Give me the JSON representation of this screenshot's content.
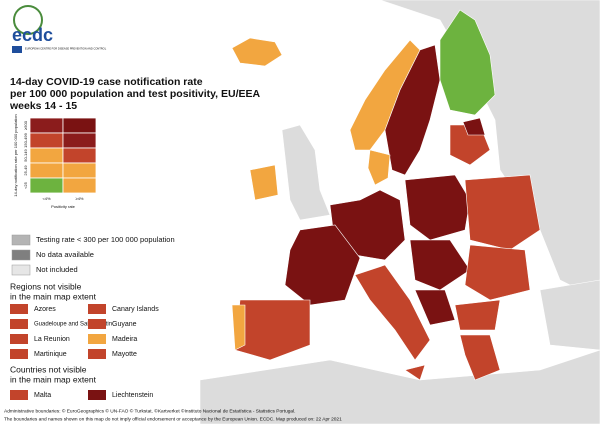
{
  "header": {
    "logo": "ecdc",
    "org": "EUROPEAN CENTRE FOR DISEASE PREVENTION AND CONTROL",
    "title": [
      "14-day COVID-19 case notification rate",
      "per 100 000 population and test positivity, EU/EEA",
      "weeks 14 - 15"
    ]
  },
  "matrix": {
    "y_label": "14-day notification rate per 100 000 population",
    "x_label": "Positivity rate",
    "columns": [
      "<4%",
      "≥4%"
    ],
    "rows": [
      {
        "label": "≥500",
        "colors": [
          "#8b1c1c",
          "#7a1212"
        ]
      },
      {
        "label": "150-499",
        "colors": [
          "#c2442b",
          "#8b1c1c"
        ]
      },
      {
        "label": "50-149",
        "colors": [
          "#f2a640",
          "#c2442b"
        ]
      },
      {
        "label": "25-49",
        "colors": [
          "#f2a640",
          "#f2a640"
        ]
      },
      {
        "label": "<25",
        "colors": [
          "#6db33f",
          "#f2a640"
        ]
      }
    ]
  },
  "legend": [
    {
      "label": "Testing rate < 300 per 100 000 population",
      "color": "#b4b4b4"
    },
    {
      "label": "No data available",
      "color": "#7f7f7f"
    },
    {
      "label": "Not included",
      "color": "#e6e6e6"
    }
  ],
  "regions": {
    "heading": [
      "Regions not visible",
      "in the main map extent"
    ],
    "items": [
      {
        "label": "Azores",
        "color": "#c2442b"
      },
      {
        "label": "Canary Islands",
        "color": "#c2442b"
      },
      {
        "label": "Guadeloupe and Saint Martin",
        "color": "#c2442b"
      },
      {
        "label": "Guyane",
        "color": "#c2442b"
      },
      {
        "label": "La Reunion",
        "color": "#c2442b"
      },
      {
        "label": "Madeira",
        "color": "#f2a640"
      },
      {
        "label": "Martinique",
        "color": "#c2442b"
      },
      {
        "label": "Mayotte",
        "color": "#c2442b"
      }
    ]
  },
  "countries": {
    "heading": [
      "Countries not visible",
      "in the main map extent"
    ],
    "items": [
      {
        "label": "Malta",
        "color": "#c2442b"
      },
      {
        "label": "Liechtenstein",
        "color": "#7a1212"
      }
    ]
  },
  "footer": [
    "Administrative boundaries: © EuroGeographics © UN-FAO © Turkstat. ©Kartverket ©Instituto Nacional de Estatística - Statistics Portugal.",
    "The boundaries and names shown on this map do not imply official endorsement or acceptance by the European Union. ECDC. Map produced on: 22 Apr 2021"
  ]
}
